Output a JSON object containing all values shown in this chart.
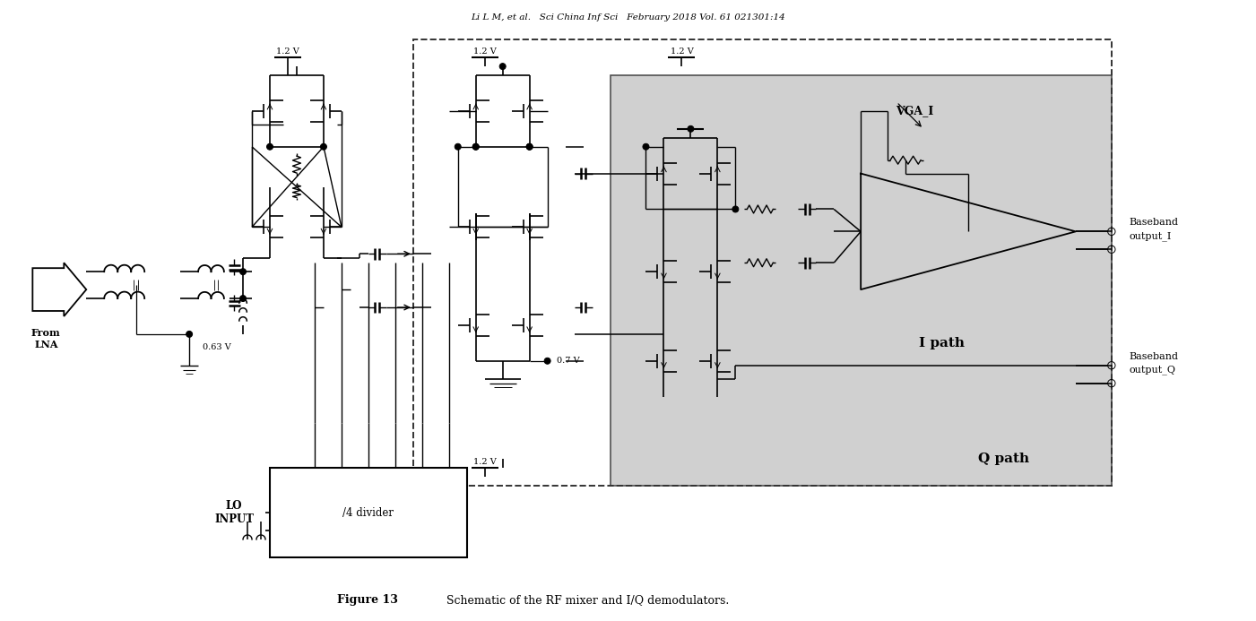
{
  "title_top": "Li L M, et al.   Sci China Inf Sci   February 2018 Vol. 61 021301:14",
  "caption_bold": "Figure 13",
  "caption_rest": "   Schematic of the RF mixer and I/Q demodulators.",
  "bg_color": "#ffffff",
  "light_gray": "#d0d0d0",
  "label_0_63": "0.63 V",
  "label_0_7": "0.7 V",
  "label_1_2_a": "1.2 V",
  "label_1_2_b": "1.2 V",
  "label_1_2_c": "1.2 V",
  "label_1_2_d": "1.2 V",
  "label_from_lna": "From\nLNA",
  "label_lo_input": "LO\nINPUT",
  "label_divider": "/4 divider",
  "label_vga_i": "VGA_I",
  "label_i_path": "I path",
  "label_q_path": "Q path",
  "label_bb_out_i1": "Baseband",
  "label_bb_out_i2": "output_I",
  "label_bb_out_q1": "Baseband",
  "label_bb_out_q2": "output_Q",
  "fig_width": 14.01,
  "fig_height": 6.93
}
